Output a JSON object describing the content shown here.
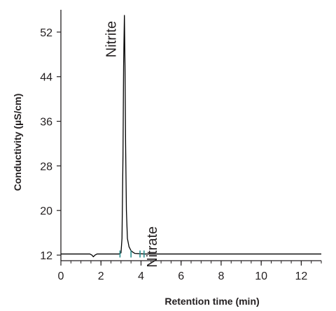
{
  "chart_data": {
    "type": "line",
    "xlabel": "Retention time (min)",
    "ylabel": "Conductivity (µS/cm)",
    "xlim": [
      0,
      13
    ],
    "ylim": [
      11,
      56
    ],
    "x_ticks": [
      0,
      2,
      4,
      6,
      8,
      10,
      12
    ],
    "y_ticks": [
      12,
      20,
      28,
      36,
      44,
      52
    ],
    "x_minor_step": 0.5,
    "series": [
      {
        "color": "#000000",
        "x": [
          0.0,
          1.45,
          1.55,
          1.62,
          1.7,
          1.8,
          2.9,
          3.0,
          3.05,
          3.1,
          3.13,
          3.17,
          3.2,
          3.23,
          3.27,
          3.32,
          3.4,
          3.5,
          3.6,
          3.7,
          4.2,
          13.0
        ],
        "y": [
          12.2,
          12.2,
          12.0,
          11.7,
          12.0,
          12.2,
          12.2,
          12.4,
          15.0,
          30.0,
          46.0,
          55.0,
          46.0,
          32.0,
          20.0,
          15.0,
          13.5,
          12.8,
          12.5,
          12.3,
          12.2,
          12.2
        ]
      }
    ],
    "peak_labels": [
      {
        "text": "Nitrite",
        "x": 3.17,
        "y": 55.0
      },
      {
        "text": "Nitrate",
        "x": 4.15,
        "y": 12.4
      }
    ],
    "integration_marks": {
      "color": "#2a8f8f",
      "x": [
        2.95,
        3.5,
        3.95,
        4.15
      ]
    },
    "grid": false,
    "legend": "none"
  }
}
